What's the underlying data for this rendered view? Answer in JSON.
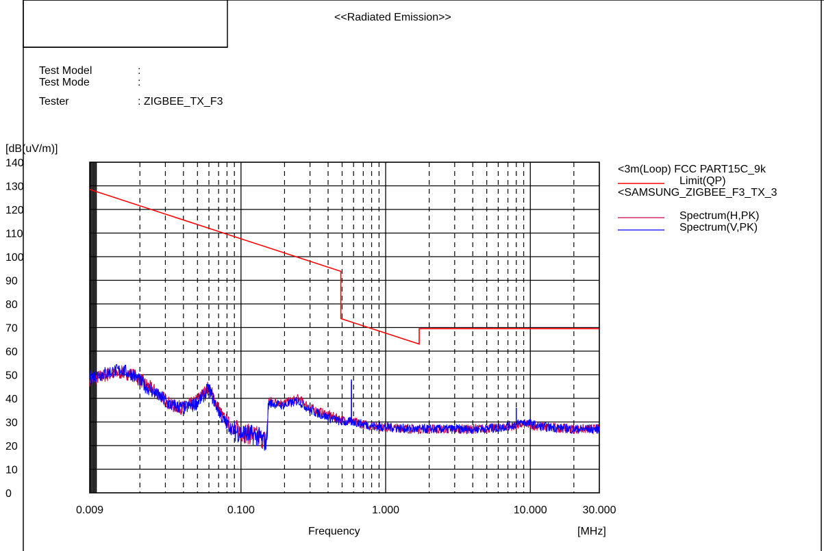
{
  "report": {
    "title": "<<Radiated Emission>>",
    "fields": [
      {
        "label": "Test Model",
        "value": ":"
      },
      {
        "label": "Test Mode",
        "value": ":"
      },
      {
        "label": "Tester",
        "value": ": ZIGBEE_TX_F3"
      }
    ]
  },
  "chart_data": {
    "type": "line",
    "title": "",
    "xlabel": "Frequency",
    "xunit": "[MHz]",
    "ylabel": "[dB(uV/m)]",
    "xscale": "log",
    "xlim": [
      0.009,
      30
    ],
    "ylim": [
      0,
      140
    ],
    "x_tick_labels": [
      "0.009",
      "0.100",
      "1.000",
      "10.000",
      "30.000"
    ],
    "y_tick_labels": [
      "0",
      "10",
      "20",
      "30",
      "40",
      "50",
      "60",
      "70",
      "80",
      "90",
      "100",
      "110",
      "120",
      "130",
      "140"
    ],
    "grid": true,
    "legend_position": "right",
    "legend_headers": [
      "<3m(Loop) FCC PART15C_9k",
      "<SAMSUNG_ZIGBEE_F3_TX_3"
    ],
    "series": [
      {
        "name": "Limit(QP)",
        "color": "#ff0000",
        "x": [
          0.009,
          0.49,
          0.49,
          1.705,
          1.705,
          30
        ],
        "y": [
          128.5,
          93.8,
          73.8,
          63.0,
          69.5,
          69.5
        ]
      },
      {
        "name": "Spectrum(H,PK)",
        "color": "#cc0044",
        "x": [
          0.009,
          0.012,
          0.015,
          0.018,
          0.022,
          0.027,
          0.033,
          0.04,
          0.047,
          0.055,
          0.06,
          0.065,
          0.075,
          0.09,
          0.11,
          0.13,
          0.15,
          0.155,
          0.2,
          0.25,
          0.3,
          0.4,
          0.5,
          0.6,
          0.7,
          0.9,
          1.2,
          1.6,
          2.5,
          4,
          6,
          8,
          9,
          12,
          20,
          30
        ],
        "y": [
          48,
          50,
          51,
          50,
          46,
          42,
          37,
          36,
          38,
          42,
          45,
          40,
          32,
          27,
          25,
          24,
          22,
          39,
          38,
          40,
          36,
          33,
          31,
          30,
          29,
          28,
          27.5,
          27,
          27,
          27,
          27.5,
          28.5,
          29,
          28,
          27,
          27
        ]
      },
      {
        "name": "Spectrum(V,PK)",
        "color": "#0000ff",
        "x": [
          0.009,
          0.012,
          0.015,
          0.018,
          0.022,
          0.027,
          0.033,
          0.04,
          0.047,
          0.055,
          0.06,
          0.065,
          0.075,
          0.09,
          0.11,
          0.13,
          0.15,
          0.155,
          0.2,
          0.25,
          0.3,
          0.4,
          0.5,
          0.6,
          0.7,
          0.9,
          1.2,
          1.6,
          2.5,
          4,
          6,
          8,
          9,
          12,
          20,
          30
        ],
        "y": [
          49,
          51,
          52,
          50,
          45,
          41,
          37,
          36,
          37,
          41,
          44,
          39,
          31,
          26,
          25,
          24,
          21,
          38,
          37,
          39,
          35,
          32,
          30,
          30,
          29,
          28,
          27.5,
          27,
          27,
          27,
          27.5,
          29,
          30,
          28,
          27,
          27
        ]
      }
    ],
    "spikes": [
      {
        "series": 1,
        "x": 0.58,
        "y": 47
      },
      {
        "series": 2,
        "x": 0.58,
        "y": 48
      },
      {
        "series": 2,
        "x": 8.0,
        "y": 36
      }
    ]
  }
}
